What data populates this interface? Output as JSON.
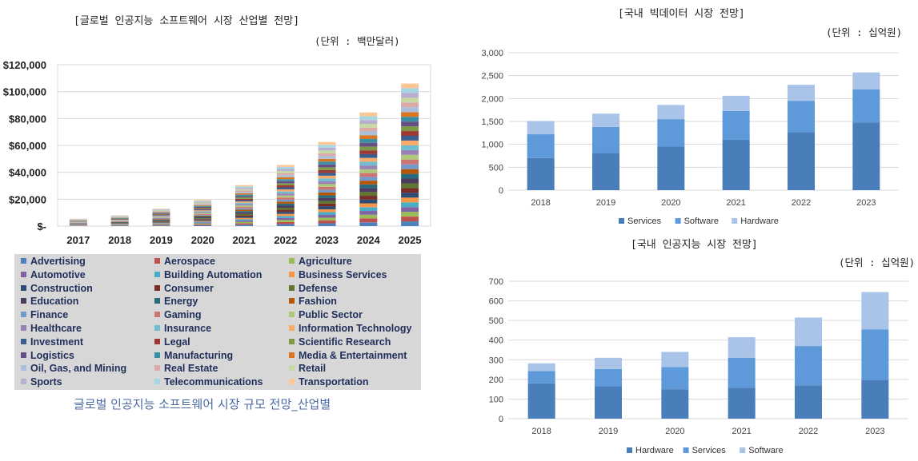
{
  "left_panel": {
    "title": "[글로벌 인공지능 소프트웨어 시장 산업별 전망]",
    "unit": "(단위 : 백만달러)",
    "caption": "글로벌 인공지능 소프트웨어 시장 규모 전망_산업별"
  },
  "right_top_panel": {
    "title": "[국내 빅데이터 시장 전망]",
    "unit": "(단위 : 십억원)"
  },
  "right_bottom_panel": {
    "title": "[국내 인공지능 시장 전망]",
    "unit": "(단위 : 십억원)"
  },
  "chart_data": [
    {
      "id": "global-ai-software",
      "type": "bar",
      "stacked": true,
      "title": "[글로벌 인공지능 소프트웨어 시장 산업별 전망]",
      "categories": [
        "2017",
        "2018",
        "2019",
        "2020",
        "2021",
        "2022",
        "2023",
        "2024",
        "2025"
      ],
      "totals": [
        5500,
        8000,
        13000,
        19500,
        30500,
        45500,
        62500,
        84500,
        106000
      ],
      "ylim": [
        0,
        120000
      ],
      "yticks": [
        "$-",
        "$20,000",
        "$40,000",
        "$60,000",
        "$80,000",
        "$100,000",
        "$120,000"
      ],
      "grid": true,
      "legend": "bottom",
      "series_names": [
        "Advertising",
        "Aerospace",
        "Agriculture",
        "Automotive",
        "Building Automation",
        "Business Services",
        "Construction",
        "Consumer",
        "Defense",
        "Education",
        "Energy",
        "Fashion",
        "Finance",
        "Gaming",
        "Public Sector",
        "Healthcare",
        "Insurance",
        "Information Technology",
        "Investment",
        "Legal",
        "Scientific Research",
        "Logistics",
        "Manufacturing",
        "Media & Entertainment",
        "Oil, Gas, and Mining",
        "Real Estate",
        "Retail",
        "Sports",
        "Telecommunications",
        "Transportation"
      ],
      "series_colors": [
        "#4f81bd",
        "#c0504d",
        "#9bbb59",
        "#8064a2",
        "#4bacc6",
        "#f79646",
        "#2c4d75",
        "#772c2a",
        "#5f7530",
        "#4d3b62",
        "#276a7c",
        "#b65708",
        "#729aca",
        "#cd7371",
        "#afc97a",
        "#9983b5",
        "#6fbdd1",
        "#f9ab6b",
        "#3a5f8f",
        "#9e3835",
        "#7d9a46",
        "#664f84",
        "#3a8fa5",
        "#d97624",
        "#a7c0de",
        "#dba9a8",
        "#c7d9a5",
        "#b9add0",
        "#a5d6e3",
        "#fcc797"
      ]
    },
    {
      "id": "domestic-bigdata",
      "type": "bar",
      "stacked": true,
      "title": "[국내 빅데이터 시장 전망]",
      "categories": [
        "2018",
        "2019",
        "2020",
        "2021",
        "2022",
        "2023"
      ],
      "series": [
        {
          "name": "Services",
          "values": [
            700,
            810,
            950,
            1100,
            1270,
            1480
          ],
          "color": "#4a7eba"
        },
        {
          "name": "Software",
          "values": [
            520,
            570,
            600,
            630,
            680,
            720
          ],
          "color": "#5e9ad9"
        },
        {
          "name": "Hardware",
          "values": [
            290,
            290,
            310,
            330,
            350,
            370
          ],
          "color": "#a9c4e8"
        }
      ],
      "ylim": [
        0,
        3000
      ],
      "yticks": [
        "0",
        "500",
        "1,000",
        "1,500",
        "2,000",
        "2,500",
        "3,000"
      ],
      "grid": true,
      "legend": "bottom"
    },
    {
      "id": "domestic-ai",
      "type": "bar",
      "stacked": true,
      "title": "[국내 인공지능 시장 전망]",
      "categories": [
        "2018",
        "2019",
        "2020",
        "2021",
        "2022",
        "2023"
      ],
      "series": [
        {
          "name": "Hardware",
          "values": [
            180,
            165,
            150,
            158,
            170,
            197
          ],
          "color": "#4a7eba"
        },
        {
          "name": "Services",
          "values": [
            62,
            88,
            113,
            152,
            200,
            258
          ],
          "color": "#5e9ad9"
        },
        {
          "name": "Software",
          "values": [
            40,
            57,
            77,
            105,
            145,
            190
          ],
          "color": "#a9c4e8"
        }
      ],
      "ylim": [
        0,
        700
      ],
      "yticks": [
        "0",
        "100",
        "200",
        "300",
        "400",
        "500",
        "600",
        "700"
      ],
      "grid": true,
      "legend": "bottom"
    }
  ]
}
